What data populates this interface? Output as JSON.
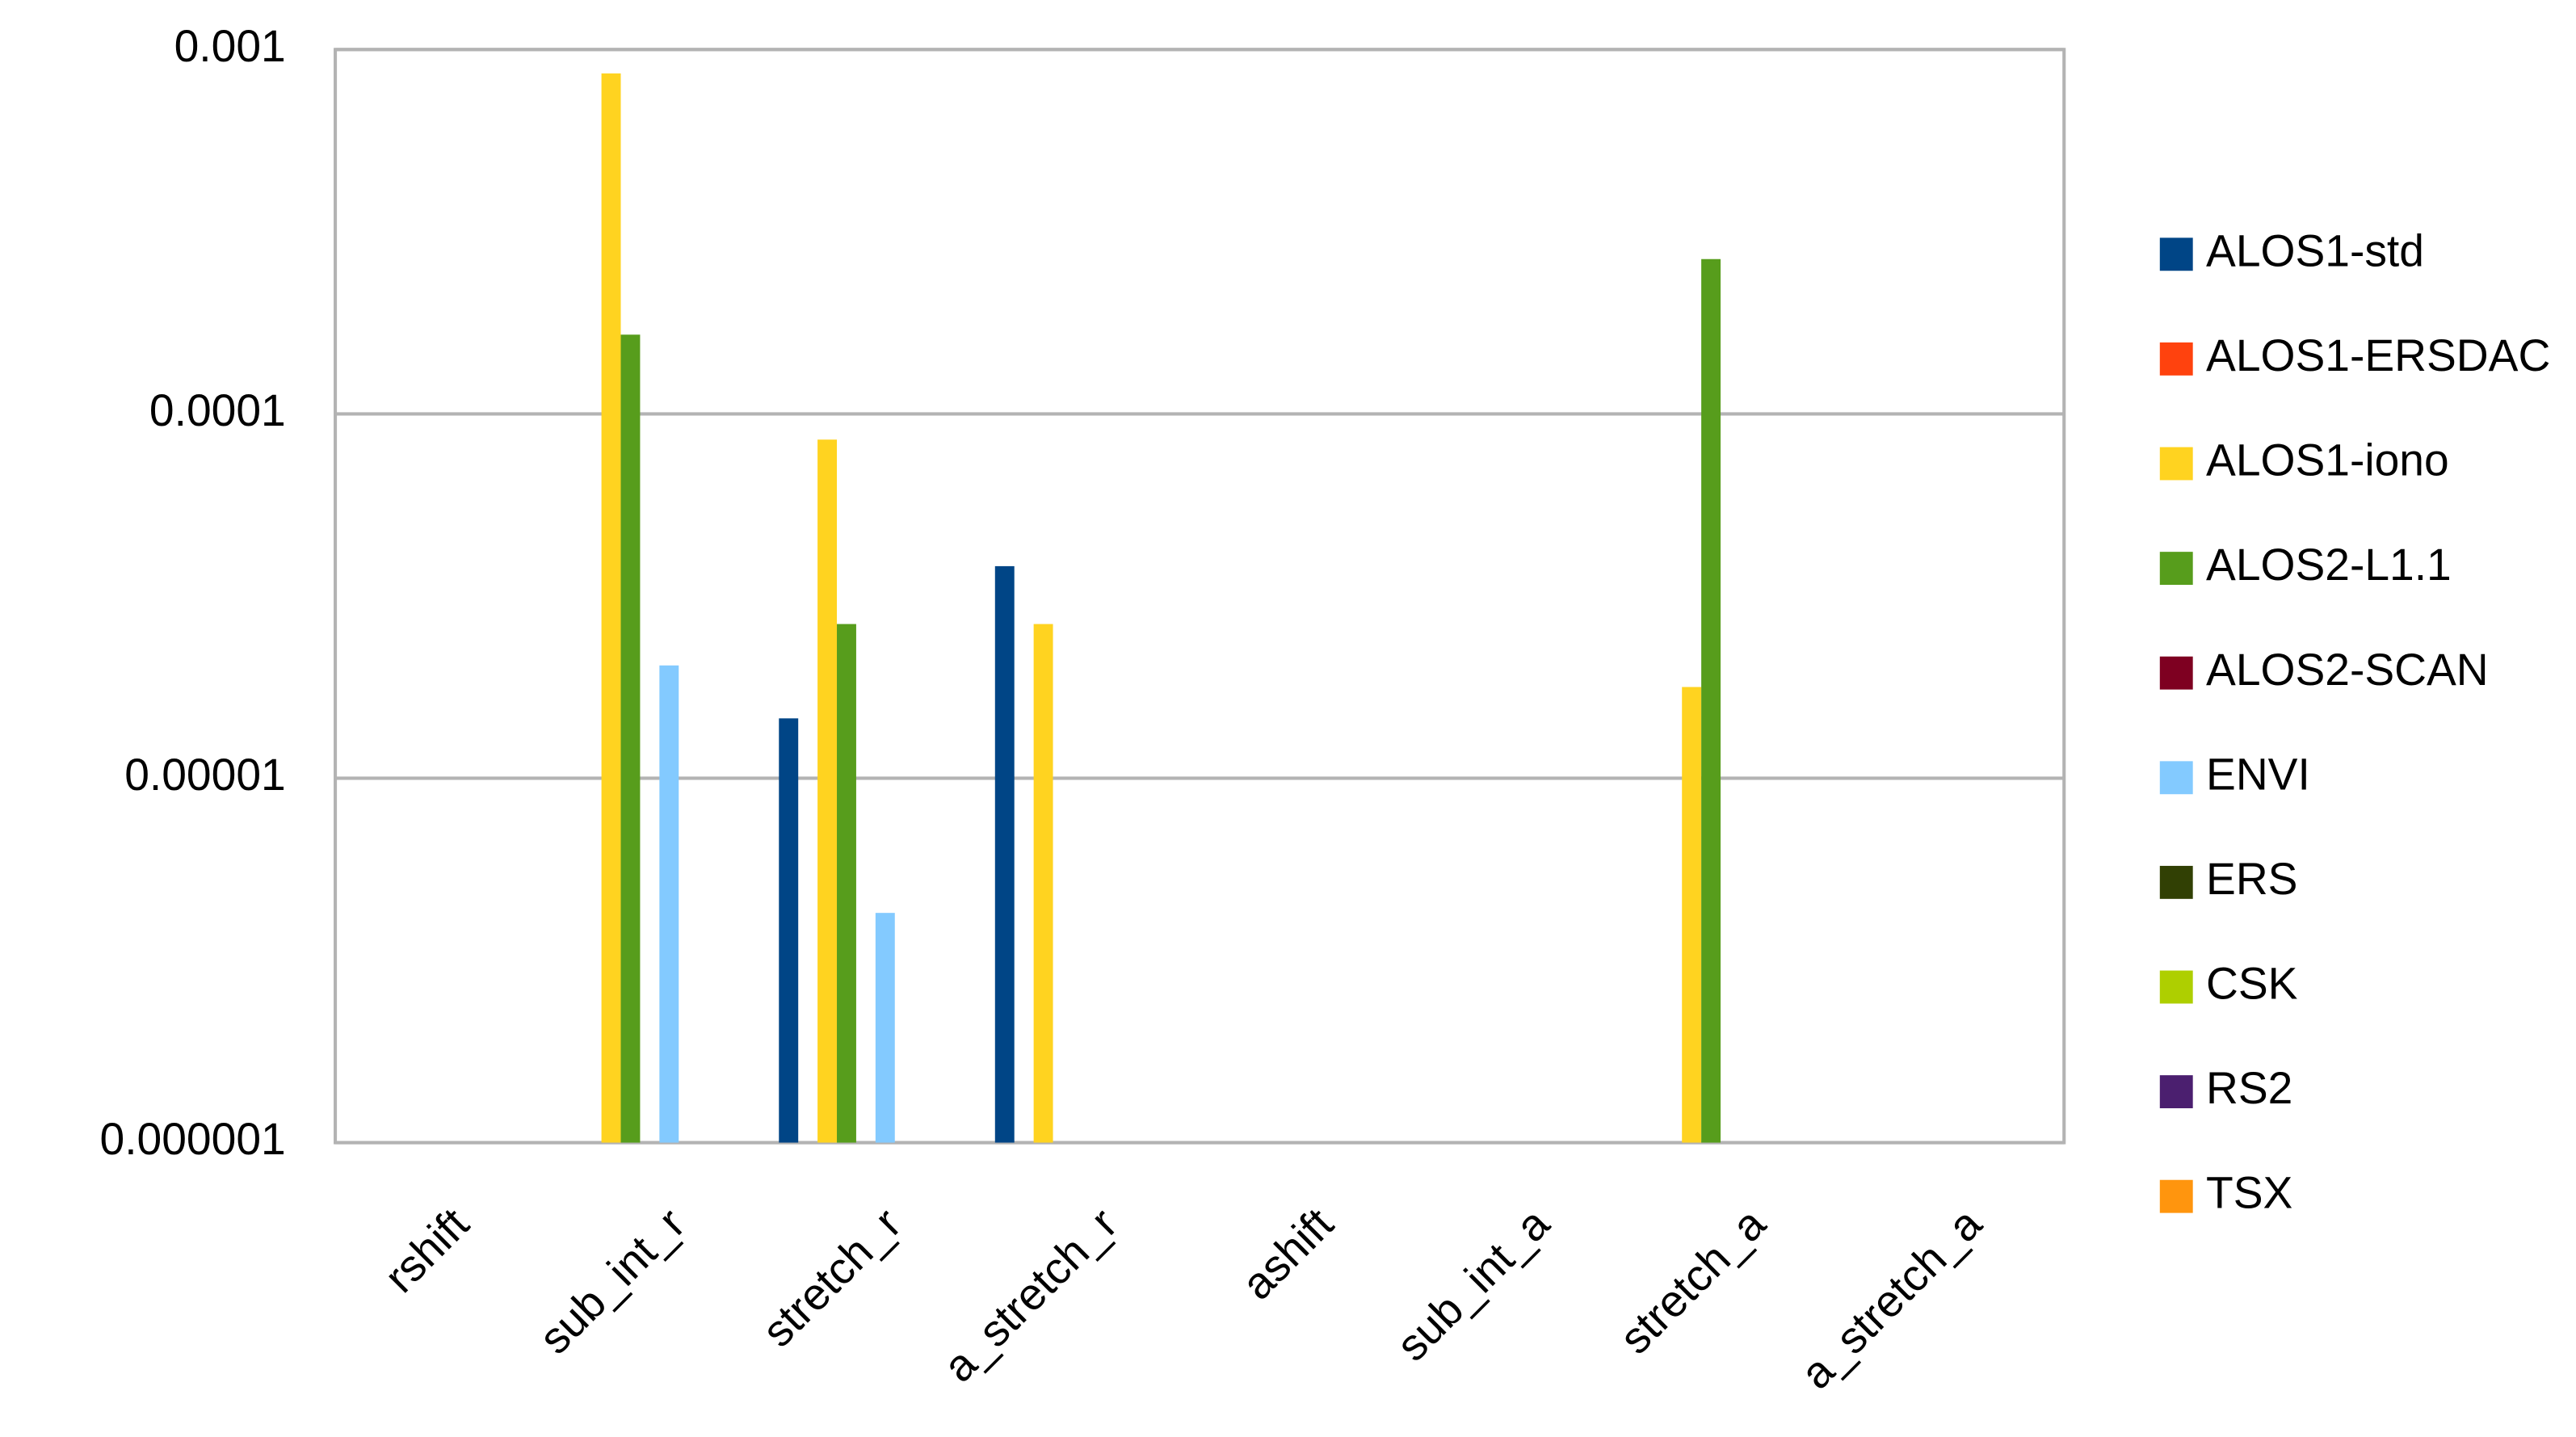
{
  "chart_data": {
    "type": "bar",
    "categories": [
      "rshift",
      "sub_int_r",
      "stretch_r",
      "a_stretch_r",
      "ashift",
      "sub_int_a",
      "stretch_a",
      "a_stretch_a"
    ],
    "series": [
      {
        "name": "ALOS1-std",
        "color": "#004586",
        "values": [
          null,
          null,
          1.46e-05,
          3.82e-05,
          null,
          null,
          null,
          null
        ]
      },
      {
        "name": "ALOS1-ERSDAC",
        "color": "#ff420e",
        "values": [
          null,
          null,
          null,
          null,
          null,
          null,
          null,
          null
        ]
      },
      {
        "name": "ALOS1-iono",
        "color": "#ffd320",
        "values": [
          null,
          0.00086,
          8.5e-05,
          2.65e-05,
          null,
          null,
          1.78e-05,
          null
        ]
      },
      {
        "name": "ALOS2-L1.1",
        "color": "#579d1c",
        "values": [
          null,
          0.000165,
          2.65e-05,
          null,
          null,
          null,
          0.000266,
          null
        ]
      },
      {
        "name": "ALOS2-SCAN",
        "color": "#7e0021",
        "values": [
          null,
          null,
          null,
          null,
          null,
          null,
          null,
          null
        ]
      },
      {
        "name": "ENVI",
        "color": "#83caff",
        "values": [
          null,
          2.04e-05,
          4.27e-06,
          null,
          null,
          null,
          null,
          null
        ]
      },
      {
        "name": "ERS",
        "color": "#314004",
        "values": [
          null,
          null,
          null,
          null,
          null,
          null,
          null,
          null
        ]
      },
      {
        "name": "CSK",
        "color": "#aecf00",
        "values": [
          null,
          null,
          null,
          null,
          null,
          null,
          null,
          null
        ]
      },
      {
        "name": "RS2",
        "color": "#4b1f6f",
        "values": [
          null,
          null,
          null,
          null,
          null,
          null,
          null,
          null
        ]
      },
      {
        "name": "TSX",
        "color": "#ff950e",
        "values": [
          null,
          null,
          null,
          null,
          null,
          null,
          null,
          null
        ]
      }
    ],
    "ylim": [
      1e-06,
      0.001
    ],
    "yticks": [
      1e-06,
      1e-05,
      0.0001,
      0.001
    ],
    "log_scale": true,
    "grid": true,
    "legend": "right"
  }
}
